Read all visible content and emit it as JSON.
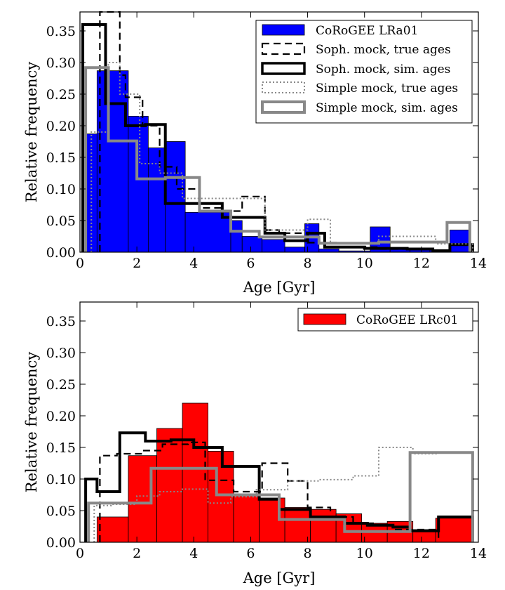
{
  "chart_data": [
    {
      "type": "histogram",
      "xlabel": "Age [Gyr]",
      "ylabel": "Relative frequency",
      "xlim": [
        0,
        14
      ],
      "ylim": [
        0,
        0.38
      ],
      "xticks": [
        "0",
        "2",
        "4",
        "6",
        "8",
        "10",
        "12",
        "14"
      ],
      "yticks": [
        "0.00",
        "0.05",
        "0.10",
        "0.15",
        "0.20",
        "0.25",
        "0.30",
        "0.35"
      ],
      "legend_position": "top-right",
      "series": [
        {
          "name": "CoRoGEE LRa01",
          "style": "filled",
          "color": "#0000ff",
          "edges": [
            0.2,
            0.6,
            1.7,
            2.4,
            3.0,
            3.7,
            5.3,
            5.7,
            6.4,
            7.2,
            7.9,
            8.4,
            9.1,
            10.2,
            10.9,
            11.6,
            12.3,
            13.0,
            13.7
          ],
          "values": [
            0.187,
            0.287,
            0.215,
            0.165,
            0.175,
            0.063,
            0.05,
            0.025,
            0.02,
            0.008,
            0.045,
            0.005,
            0.002,
            0.04,
            0.006,
            0.004,
            0.004,
            0.035
          ]
        },
        {
          "name": "Soph. mock, true ages",
          "style": "dashed",
          "color": "#000000",
          "edges": [
            0.7,
            1.4,
            1.6,
            2.2,
            2.8,
            3.4,
            4.2,
            5.0,
            5.7,
            6.5,
            7.0,
            8.0,
            9.0,
            10.5,
            12.0
          ],
          "values": [
            0.38,
            0.28,
            0.245,
            0.2,
            0.135,
            0.1,
            0.07,
            0.065,
            0.088,
            0.035,
            0.03,
            0.015,
            0.008,
            0.005
          ]
        },
        {
          "name": "Soph. mock, sim. ages",
          "style": "solid-thick",
          "color": "#000000",
          "edges": [
            0.1,
            0.9,
            1.6,
            2.3,
            3.0,
            3.7,
            5.0,
            6.5,
            7.2,
            8.0,
            8.6,
            10.0,
            11.5,
            12.4,
            13.0,
            13.8
          ],
          "values": [
            0.36,
            0.235,
            0.2,
            0.202,
            0.077,
            0.077,
            0.055,
            0.03,
            0.018,
            0.03,
            0.008,
            0.006,
            0.005,
            0.002,
            0.012
          ]
        },
        {
          "name": "Simple mock, true ages",
          "style": "dotted",
          "color": "#888888",
          "edges": [
            0.4,
            1.0,
            1.4,
            2.1,
            2.8,
            3.6,
            4.6,
            5.6,
            6.5,
            8.0,
            8.8,
            10.5,
            12.5,
            13.8
          ],
          "values": [
            0.19,
            0.3,
            0.25,
            0.14,
            0.125,
            0.085,
            0.085,
            0.085,
            0.035,
            0.052,
            0.015,
            0.025,
            0.013
          ]
        },
        {
          "name": "Simple mock, sim. ages",
          "style": "solid-thick",
          "color": "#888888",
          "edges": [
            0.2,
            1.0,
            2.0,
            3.0,
            4.2,
            5.3,
            6.3,
            8.4,
            10.5,
            12.9,
            13.7
          ],
          "values": [
            0.292,
            0.176,
            0.116,
            0.118,
            0.065,
            0.033,
            0.024,
            0.014,
            0.016,
            0.047
          ]
        }
      ]
    },
    {
      "type": "histogram",
      "xlabel": "Age [Gyr]",
      "ylabel": "Relative frequency",
      "xlim": [
        0,
        14
      ],
      "ylim": [
        0,
        0.38
      ],
      "xticks": [
        "0",
        "2",
        "4",
        "6",
        "8",
        "10",
        "12",
        "14"
      ],
      "yticks": [
        "0.00",
        "0.05",
        "0.10",
        "0.15",
        "0.20",
        "0.25",
        "0.30",
        "0.35"
      ],
      "legend_position": "top-right",
      "series": [
        {
          "name": "CoRoGEE LRc01",
          "style": "filled",
          "color": "#ff0000",
          "edges": [
            0.6,
            1.7,
            2.7,
            3.6,
            4.5,
            5.4,
            6.3,
            7.2,
            8.1,
            9.0,
            9.9,
            10.8,
            11.7,
            12.5,
            13.8
          ],
          "values": [
            0.04,
            0.137,
            0.18,
            0.22,
            0.144,
            0.075,
            0.07,
            0.055,
            0.052,
            0.045,
            0.03,
            0.033,
            0.02,
            0.038
          ]
        },
        {
          "name": "Soph. mock, true ages",
          "style": "dashed",
          "color": "#000000",
          "edges": [
            0.7,
            1.3,
            2.2,
            2.9,
            3.8,
            4.4,
            5.4,
            6.4,
            7.3,
            8.0,
            8.8,
            9.6,
            10.3,
            11.0,
            11.8,
            12.6
          ],
          "values": [
            0.137,
            0.14,
            0.145,
            0.155,
            0.158,
            0.098,
            0.08,
            0.125,
            0.097,
            0.055,
            0.04,
            0.03,
            0.027,
            0.02,
            0.02
          ]
        },
        {
          "name": "Soph. mock, sim. ages",
          "style": "solid-thick",
          "color": "#000000",
          "edges": [
            0.2,
            0.6,
            1.4,
            2.3,
            3.2,
            4.0,
            5.0,
            6.3,
            7.0,
            8.1,
            9.3,
            10.1,
            11.0,
            11.6,
            12.6,
            13.8
          ],
          "values": [
            0.1,
            0.08,
            0.173,
            0.16,
            0.162,
            0.15,
            0.12,
            0.068,
            0.052,
            0.04,
            0.03,
            0.027,
            0.024,
            0.018,
            0.04
          ]
        },
        {
          "name": "Simple mock, true ages",
          "style": "dotted",
          "color": "#888888",
          "edges": [
            0.5,
            1.1,
            2.0,
            2.8,
            3.6,
            4.5,
            5.3,
            6.2,
            7.3,
            8.4,
            9.6,
            10.5,
            11.7,
            12.6,
            13.8
          ],
          "values": [
            0.058,
            0.06,
            0.073,
            0.08,
            0.084,
            0.062,
            0.072,
            0.083,
            0.097,
            0.099,
            0.105,
            0.15,
            0.14,
            0.142
          ]
        },
        {
          "name": "Simple mock, sim. ages",
          "style": "solid-thick",
          "color": "#888888",
          "edges": [
            0.3,
            2.5,
            4.8,
            7.0,
            9.3,
            11.6,
            13.8
          ],
          "values": [
            0.062,
            0.117,
            0.075,
            0.036,
            0.017,
            0.142
          ]
        }
      ]
    }
  ]
}
